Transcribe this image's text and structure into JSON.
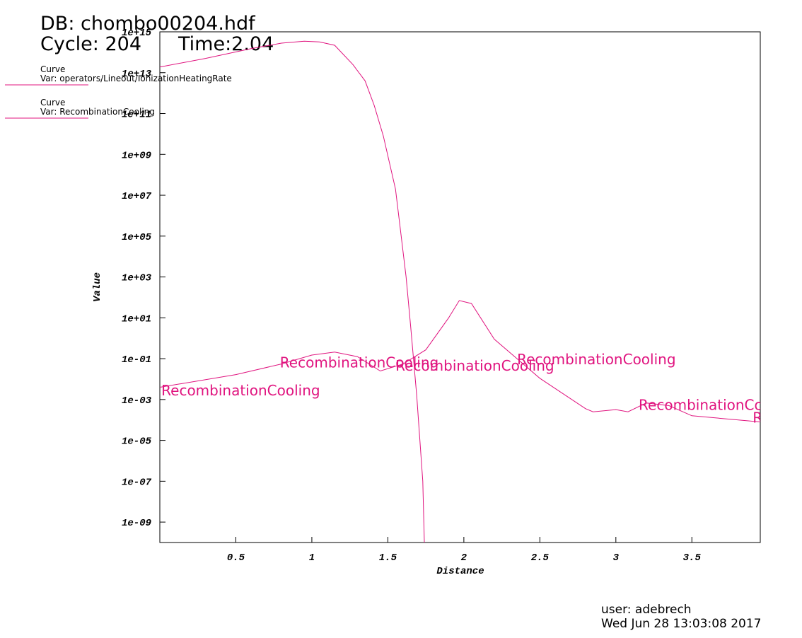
{
  "chart_data": {
    "type": "line",
    "title_lines": [
      "DB: chombo00204.hdf",
      "Cycle: 204",
      "Time:2.04"
    ],
    "x_label": "Distance",
    "y_label": "Value",
    "log_y": true,
    "xlim": [
      0,
      3.95
    ],
    "ylim": [
      1e-10,
      1000000000000000.0
    ],
    "xticks": [
      0.5,
      1.0,
      1.5,
      2.0,
      2.5,
      3.0,
      3.5
    ],
    "yticks": [
      {
        "value": 1000000000000000.0,
        "label": "1e+15"
      },
      {
        "value": 10000000000000.0,
        "label": "1e+13"
      },
      {
        "value": 100000000000.0,
        "label": "1e+11"
      },
      {
        "value": 1000000000.0,
        "label": "1e+09"
      },
      {
        "value": 10000000.0,
        "label": "1e+07"
      },
      {
        "value": 100000.0,
        "label": "1e+05"
      },
      {
        "value": 1000.0,
        "label": "1e+03"
      },
      {
        "value": 10.0,
        "label": "1e+01"
      },
      {
        "value": 0.1,
        "label": "1e-01"
      },
      {
        "value": 0.001,
        "label": "1e-03"
      },
      {
        "value": 1e-05,
        "label": "1e-05"
      },
      {
        "value": 1e-07,
        "label": "1e-07"
      },
      {
        "value": 1e-09,
        "label": "1e-09"
      }
    ],
    "series": [
      {
        "name": "Curve",
        "var": "Var: operators/Lineout/IonizationHeatingRate",
        "color": "#e0147f",
        "x": [
          0,
          0.3,
          0.6,
          0.8,
          0.95,
          1.05,
          1.15,
          1.27,
          1.35,
          1.41,
          1.47,
          1.51,
          1.55,
          1.58,
          1.62,
          1.65,
          1.69,
          1.73,
          1.74
        ],
        "values": [
          19000000000000.0,
          50000000000000.0,
          150000000000000.0,
          280000000000000.0,
          350000000000000.0,
          320000000000000.0,
          220000000000000.0,
          25000000000000.0,
          4000000000000.0,
          250000000000.0,
          8000000000.0,
          400000000.0,
          20000000.0,
          300000.0,
          1000.0,
          4,
          0.0016,
          1e-07,
          1e-10
        ]
      },
      {
        "name": "Curve",
        "var": "Var: RecombinationCooling",
        "color": "#e0147f",
        "x": [
          0,
          0.5,
          0.8,
          1.0,
          1.15,
          1.3,
          1.45,
          1.6,
          1.75,
          1.9,
          1.97,
          2.05,
          2.2,
          2.5,
          2.8,
          2.85,
          3.0,
          3.08,
          3.2,
          3.35,
          3.5,
          3.95
        ],
        "values": [
          0.004,
          0.0166,
          0.055,
          0.15,
          0.21,
          0.126,
          0.025,
          0.055,
          0.27,
          10,
          70,
          50,
          0.9,
          0.011,
          0.00036,
          0.00025,
          0.00032,
          0.00025,
          0.00068,
          0.0005,
          0.00016,
          8e-05
        ]
      }
    ],
    "annotations": [
      {
        "text": "RecombinationCooling",
        "x": 0.01,
        "y": 0.003
      },
      {
        "text": "RecombinationCooling",
        "x": 0.79,
        "y": 0.07
      },
      {
        "text": "RecombinationCooling",
        "x": 1.55,
        "y": 0.05
      },
      {
        "text": "RecombinationCooling",
        "x": 2.35,
        "y": 0.1
      },
      {
        "text": "RecombinationCooling",
        "x": 3.15,
        "y": 0.00058
      },
      {
        "text": "RecombinationCooling",
        "x": 3.9,
        "y": 0.00014
      }
    ],
    "user": "user: adebrech",
    "date": "Wed Jun 28 13:03:08 2017"
  }
}
